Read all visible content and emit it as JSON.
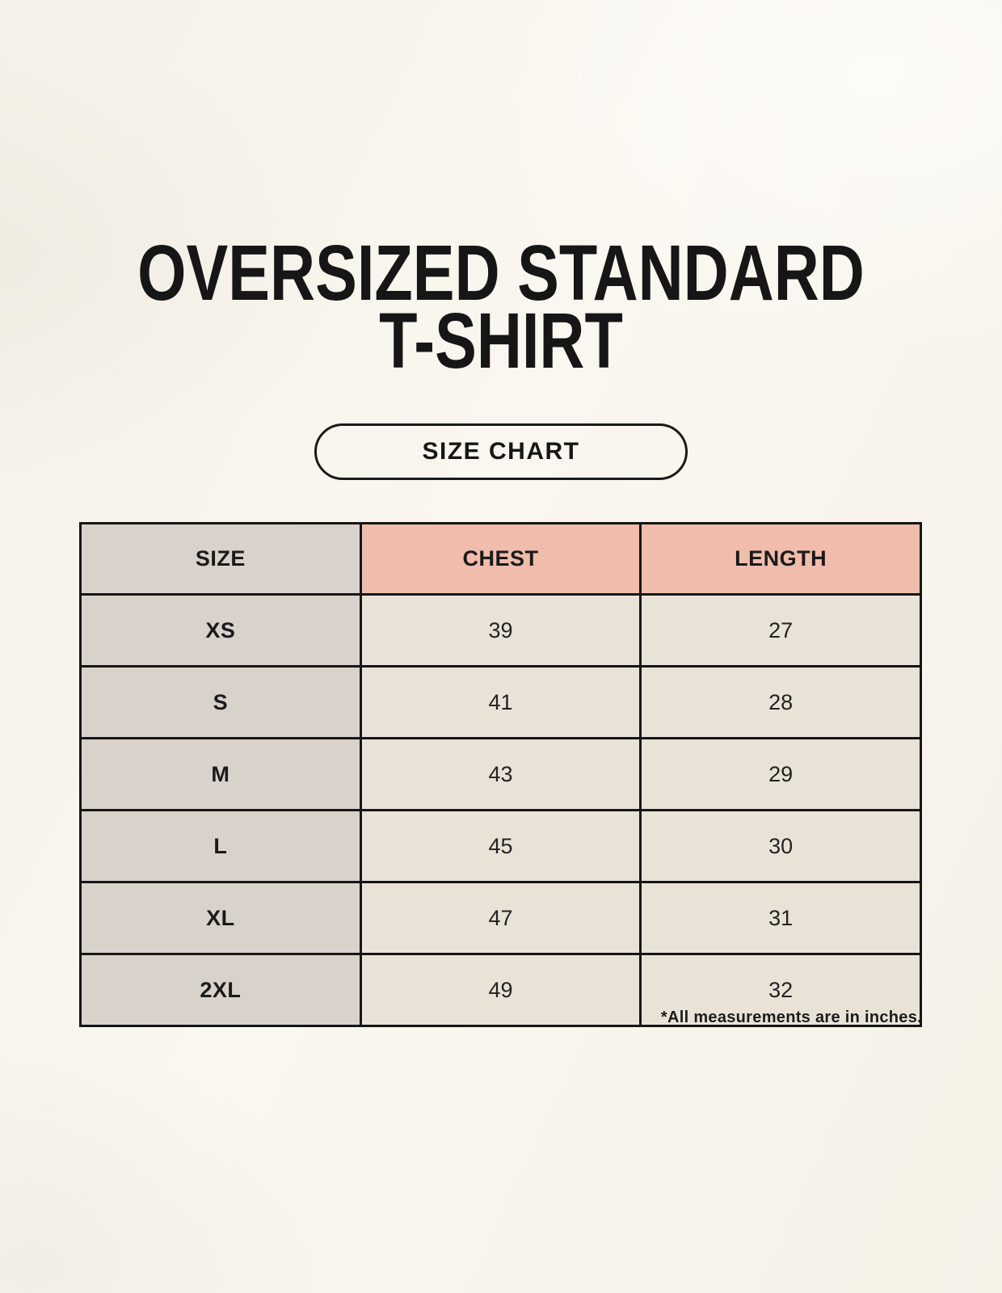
{
  "page": {
    "title_line1": "OVERSIZED STANDARD",
    "title_line2": "T-SHIRT",
    "size_chart_button": "SIZE CHART",
    "footnote": "*All measurements are in inches."
  },
  "colors": {
    "background": "#f7f4ec",
    "size_column_grey": "#d8d2cb",
    "header_salmon": "#f0bcab",
    "cell_cream": "#e9e3d7",
    "border_black": "#161616"
  },
  "chart_data": {
    "type": "table",
    "title": "OVERSIZED STANDARD T-SHIRT",
    "columns": [
      "SIZE",
      "CHEST",
      "LENGTH"
    ],
    "rows": [
      {
        "size": "XS",
        "chest": 39,
        "length": 27
      },
      {
        "size": "S",
        "chest": 41,
        "length": 28
      },
      {
        "size": "M",
        "chest": 43,
        "length": 29
      },
      {
        "size": "L",
        "chest": 45,
        "length": 30
      },
      {
        "size": "XL",
        "chest": 47,
        "length": 31
      },
      {
        "size": "2XL",
        "chest": 49,
        "length": 32
      }
    ],
    "units": "inches",
    "note": "*All measurements are in inches."
  }
}
